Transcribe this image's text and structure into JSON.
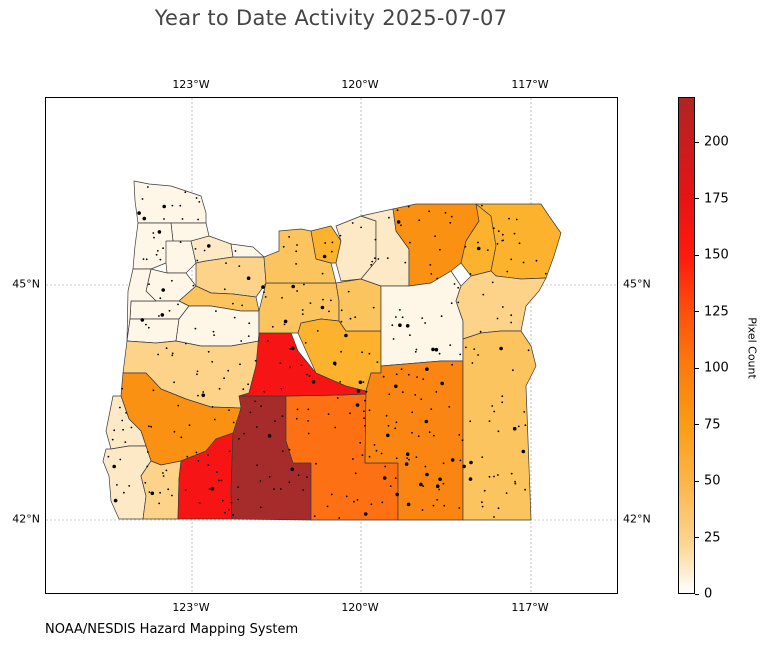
{
  "title": "Year to Date Activity 2025-07-07",
  "credit": "NOAA/NESDIS Hazard Mapping System",
  "map": {
    "lon_ticks": [
      "123°W",
      "120°W",
      "117°W"
    ],
    "lat_ticks": [
      "45°N",
      "42°N"
    ],
    "gridlines": true
  },
  "colorbar": {
    "label": "Pixel Count",
    "ticks": [
      "0",
      "25",
      "50",
      "75",
      "100",
      "125",
      "150",
      "175",
      "200"
    ],
    "range": [
      0,
      220
    ],
    "colors": [
      "#ffffff",
      "#fdd590",
      "#fdb64a",
      "#fd9b13",
      "#fc7a0d",
      "#ff1a0d",
      "#b02424"
    ]
  },
  "colors": {
    "c0": "#fef6e7",
    "c25": "#fde9c6",
    "c40": "#fdd38a",
    "c55": "#fcc45e",
    "c70": "#fdb22e",
    "c90": "#fb9112",
    "c100": "#fb8512",
    "c115": "#fd7013",
    "c160": "#f61414",
    "c210": "#a62b2b",
    "border": "#3a3a3a",
    "fire_points": "#000000"
  }
}
